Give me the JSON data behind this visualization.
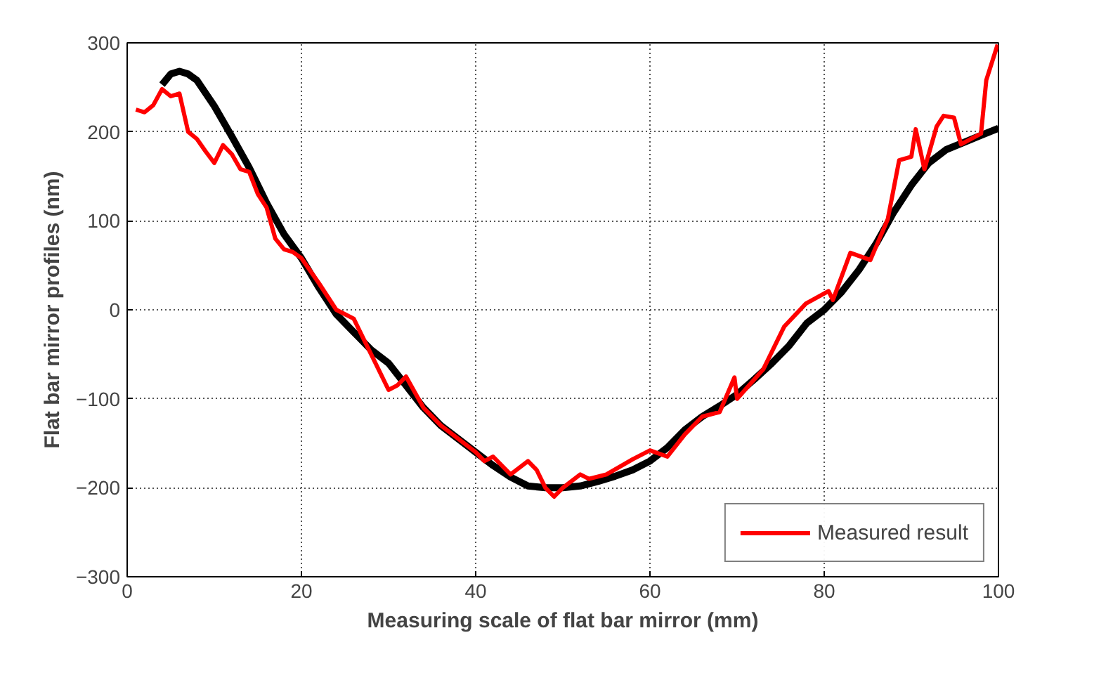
{
  "chart_data": {
    "type": "line",
    "xlabel": "Measuring scale of flat bar mirror (mm)",
    "ylabel": "Flat bar mirror profiles (nm)",
    "xlim": [
      0,
      100
    ],
    "ylim": [
      -300,
      300
    ],
    "xticks": [
      0,
      20,
      40,
      60,
      80,
      100
    ],
    "yticks": [
      -300,
      -200,
      -100,
      0,
      100,
      200,
      300
    ],
    "grid": true,
    "legend": "bottom right",
    "line_style": "solid",
    "series": [
      {
        "color": "#000000",
        "x": [
          4,
          5,
          6,
          7,
          8,
          10,
          12,
          14,
          16,
          18,
          20,
          22,
          24,
          26,
          28,
          30,
          32,
          34,
          36,
          38,
          40,
          42,
          44,
          46,
          48,
          50,
          52,
          54,
          56,
          58,
          60,
          62,
          64,
          66,
          68,
          70,
          72,
          74,
          76,
          78,
          80,
          82,
          84,
          86,
          88,
          90,
          92,
          94,
          96,
          98,
          100
        ],
        "values": [
          253,
          265,
          268,
          265,
          258,
          229,
          195,
          160,
          120,
          85,
          58,
          25,
          -5,
          -25,
          -45,
          -60,
          -85,
          -110,
          -130,
          -145,
          -160,
          -175,
          -188,
          -198,
          -200,
          -200,
          -198,
          -193,
          -187,
          -180,
          -170,
          -155,
          -135,
          -120,
          -108,
          -95,
          -78,
          -60,
          -40,
          -15,
          0,
          20,
          45,
          75,
          110,
          140,
          165,
          180,
          188,
          196,
          204
        ]
      },
      {
        "name": "Measured result",
        "color": "#ff0000",
        "x": [
          1,
          2,
          3,
          4,
          5,
          6,
          7,
          8,
          9,
          10,
          11,
          12,
          13,
          14,
          15,
          16,
          17,
          18,
          19,
          20,
          22,
          24,
          26,
          28,
          30,
          31,
          32,
          34,
          36,
          38,
          40,
          41,
          42,
          44,
          46,
          47,
          48,
          49,
          50,
          52,
          53,
          55,
          58,
          60,
          62,
          64,
          66,
          68,
          69.7,
          70,
          73,
          75.4,
          77.9,
          80.5,
          81,
          83,
          85.3,
          87.3,
          88.6,
          90,
          90.5,
          91.5,
          92.9,
          93.7,
          94.9,
          95.7,
          98,
          98.6,
          99.9
        ],
        "values": [
          225,
          222,
          230,
          248,
          240,
          243,
          200,
          192,
          178,
          165,
          185,
          175,
          158,
          155,
          130,
          115,
          80,
          68,
          65,
          58,
          30,
          0,
          -10,
          -50,
          -90,
          -85,
          -75,
          -110,
          -130,
          -145,
          -160,
          -170,
          -165,
          -185,
          -170,
          -180,
          -200,
          -210,
          -200,
          -185,
          -190,
          -185,
          -168,
          -158,
          -165,
          -140,
          -120,
          -115,
          -76,
          -100,
          -67,
          -19,
          7,
          21,
          11,
          64,
          56,
          102,
          168,
          172,
          203,
          158,
          206,
          218,
          216,
          186,
          198,
          258,
          298
        ]
      }
    ]
  }
}
